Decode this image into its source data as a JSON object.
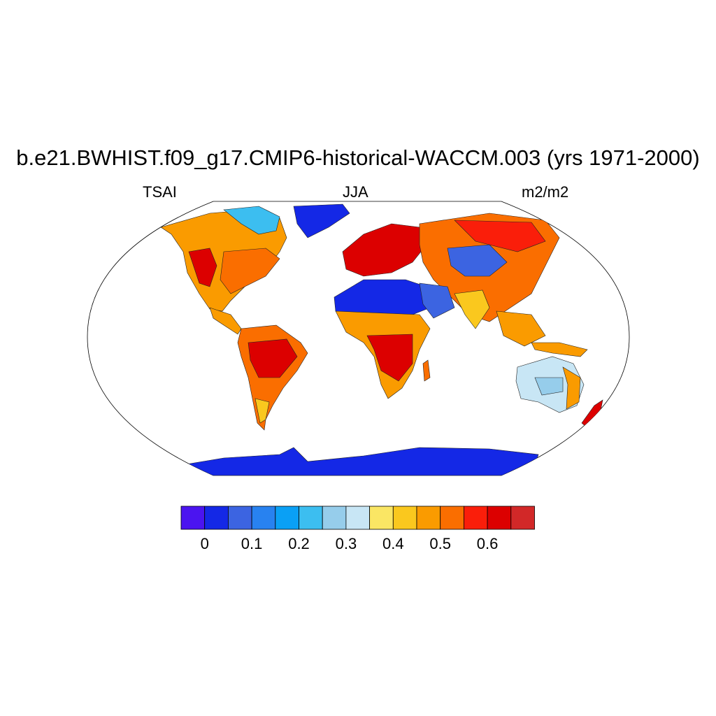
{
  "title": "b.e21.BWHIST.f09_g17.CMIP6-historical-WACCM.003 (yrs 1971-2000)",
  "left_label": "TSAI",
  "center_label": "JJA",
  "right_label": "m2/m2",
  "colorbar": {
    "colors": [
      "#4b14f0",
      "#1428e6",
      "#3c64e1",
      "#2882f0",
      "#0aa0f5",
      "#3cbef0",
      "#96cdeb",
      "#c8e6f5",
      "#fae664",
      "#fac81e",
      "#fa9b00",
      "#fa6e00",
      "#fa1e0a",
      "#dc0000",
      "#d22828"
    ],
    "tick_labels": [
      "0",
      "0.1",
      "0.2",
      "0.3",
      "0.4",
      "0.5",
      "0.6"
    ]
  },
  "chart_data": {
    "type": "heatmap",
    "title": "b.e21.BWHIST.f09_g17.CMIP6-historical-WACCM.003 (yrs 1971-2000)",
    "variable": "TSAI",
    "season": "JJA",
    "units": "m2/m2",
    "projection": "Robinson",
    "levels": [
      0,
      0.05,
      0.1,
      0.15,
      0.2,
      0.25,
      0.3,
      0.35,
      0.4,
      0.45,
      0.5,
      0.55,
      0.6,
      0.65
    ],
    "regions": [
      {
        "name": "North America",
        "value": 0.5
      },
      {
        "name": "Greenland",
        "value": 0.05
      },
      {
        "name": "South America",
        "value": 0.58
      },
      {
        "name": "Europe",
        "value": 0.62
      },
      {
        "name": "Asia",
        "value": 0.55
      },
      {
        "name": "Sahara",
        "value": 0.05
      },
      {
        "name": "Arabia",
        "value": 0.1
      },
      {
        "name": "Central Africa",
        "value": 0.58
      },
      {
        "name": "Australia",
        "value": 0.3
      },
      {
        "name": "Antarctica",
        "value": 0.05
      }
    ]
  }
}
